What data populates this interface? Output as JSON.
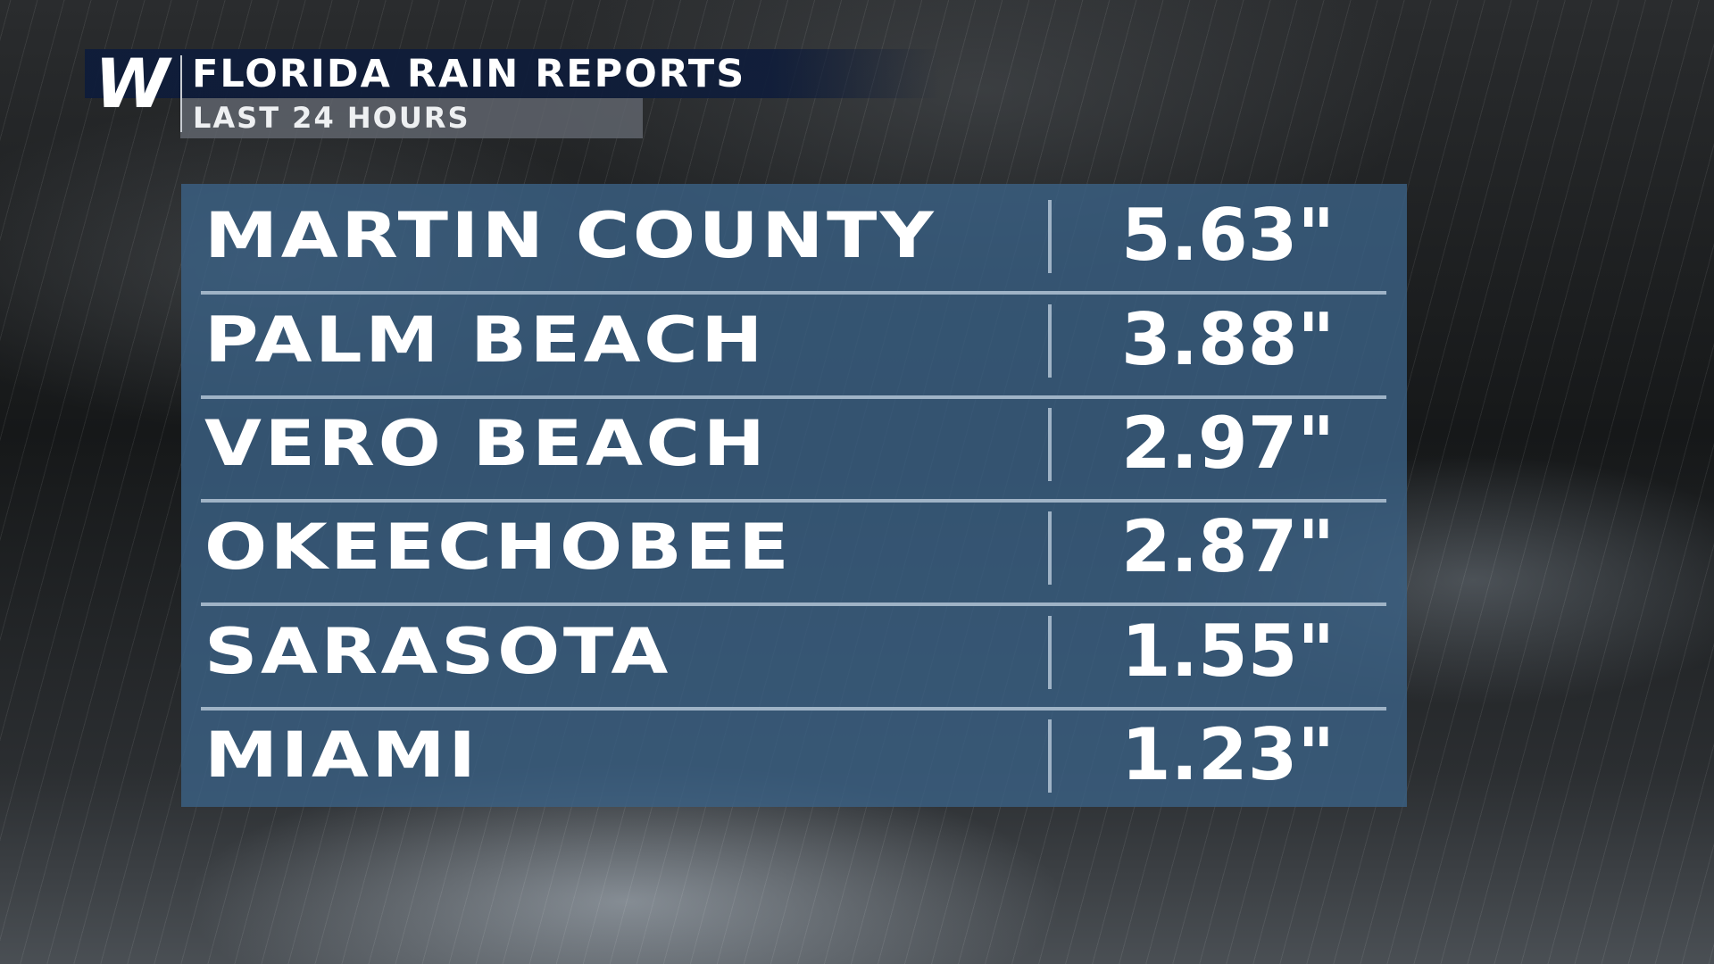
{
  "header": {
    "logo": "W",
    "title": "FLORIDA RAIN REPORTS",
    "subtitle": "LAST 24 HOURS"
  },
  "table": {
    "rows": [
      [
        "MARTIN COUNTY",
        "5.63\""
      ],
      [
        "PALM BEACH",
        "3.88\""
      ],
      [
        "VERO BEACH",
        "2.97\""
      ],
      [
        "OKEECHOBEE",
        "2.87\""
      ],
      [
        "SARASOTA",
        "1.55\""
      ],
      [
        "MIAMI",
        "1.23\""
      ]
    ]
  }
}
